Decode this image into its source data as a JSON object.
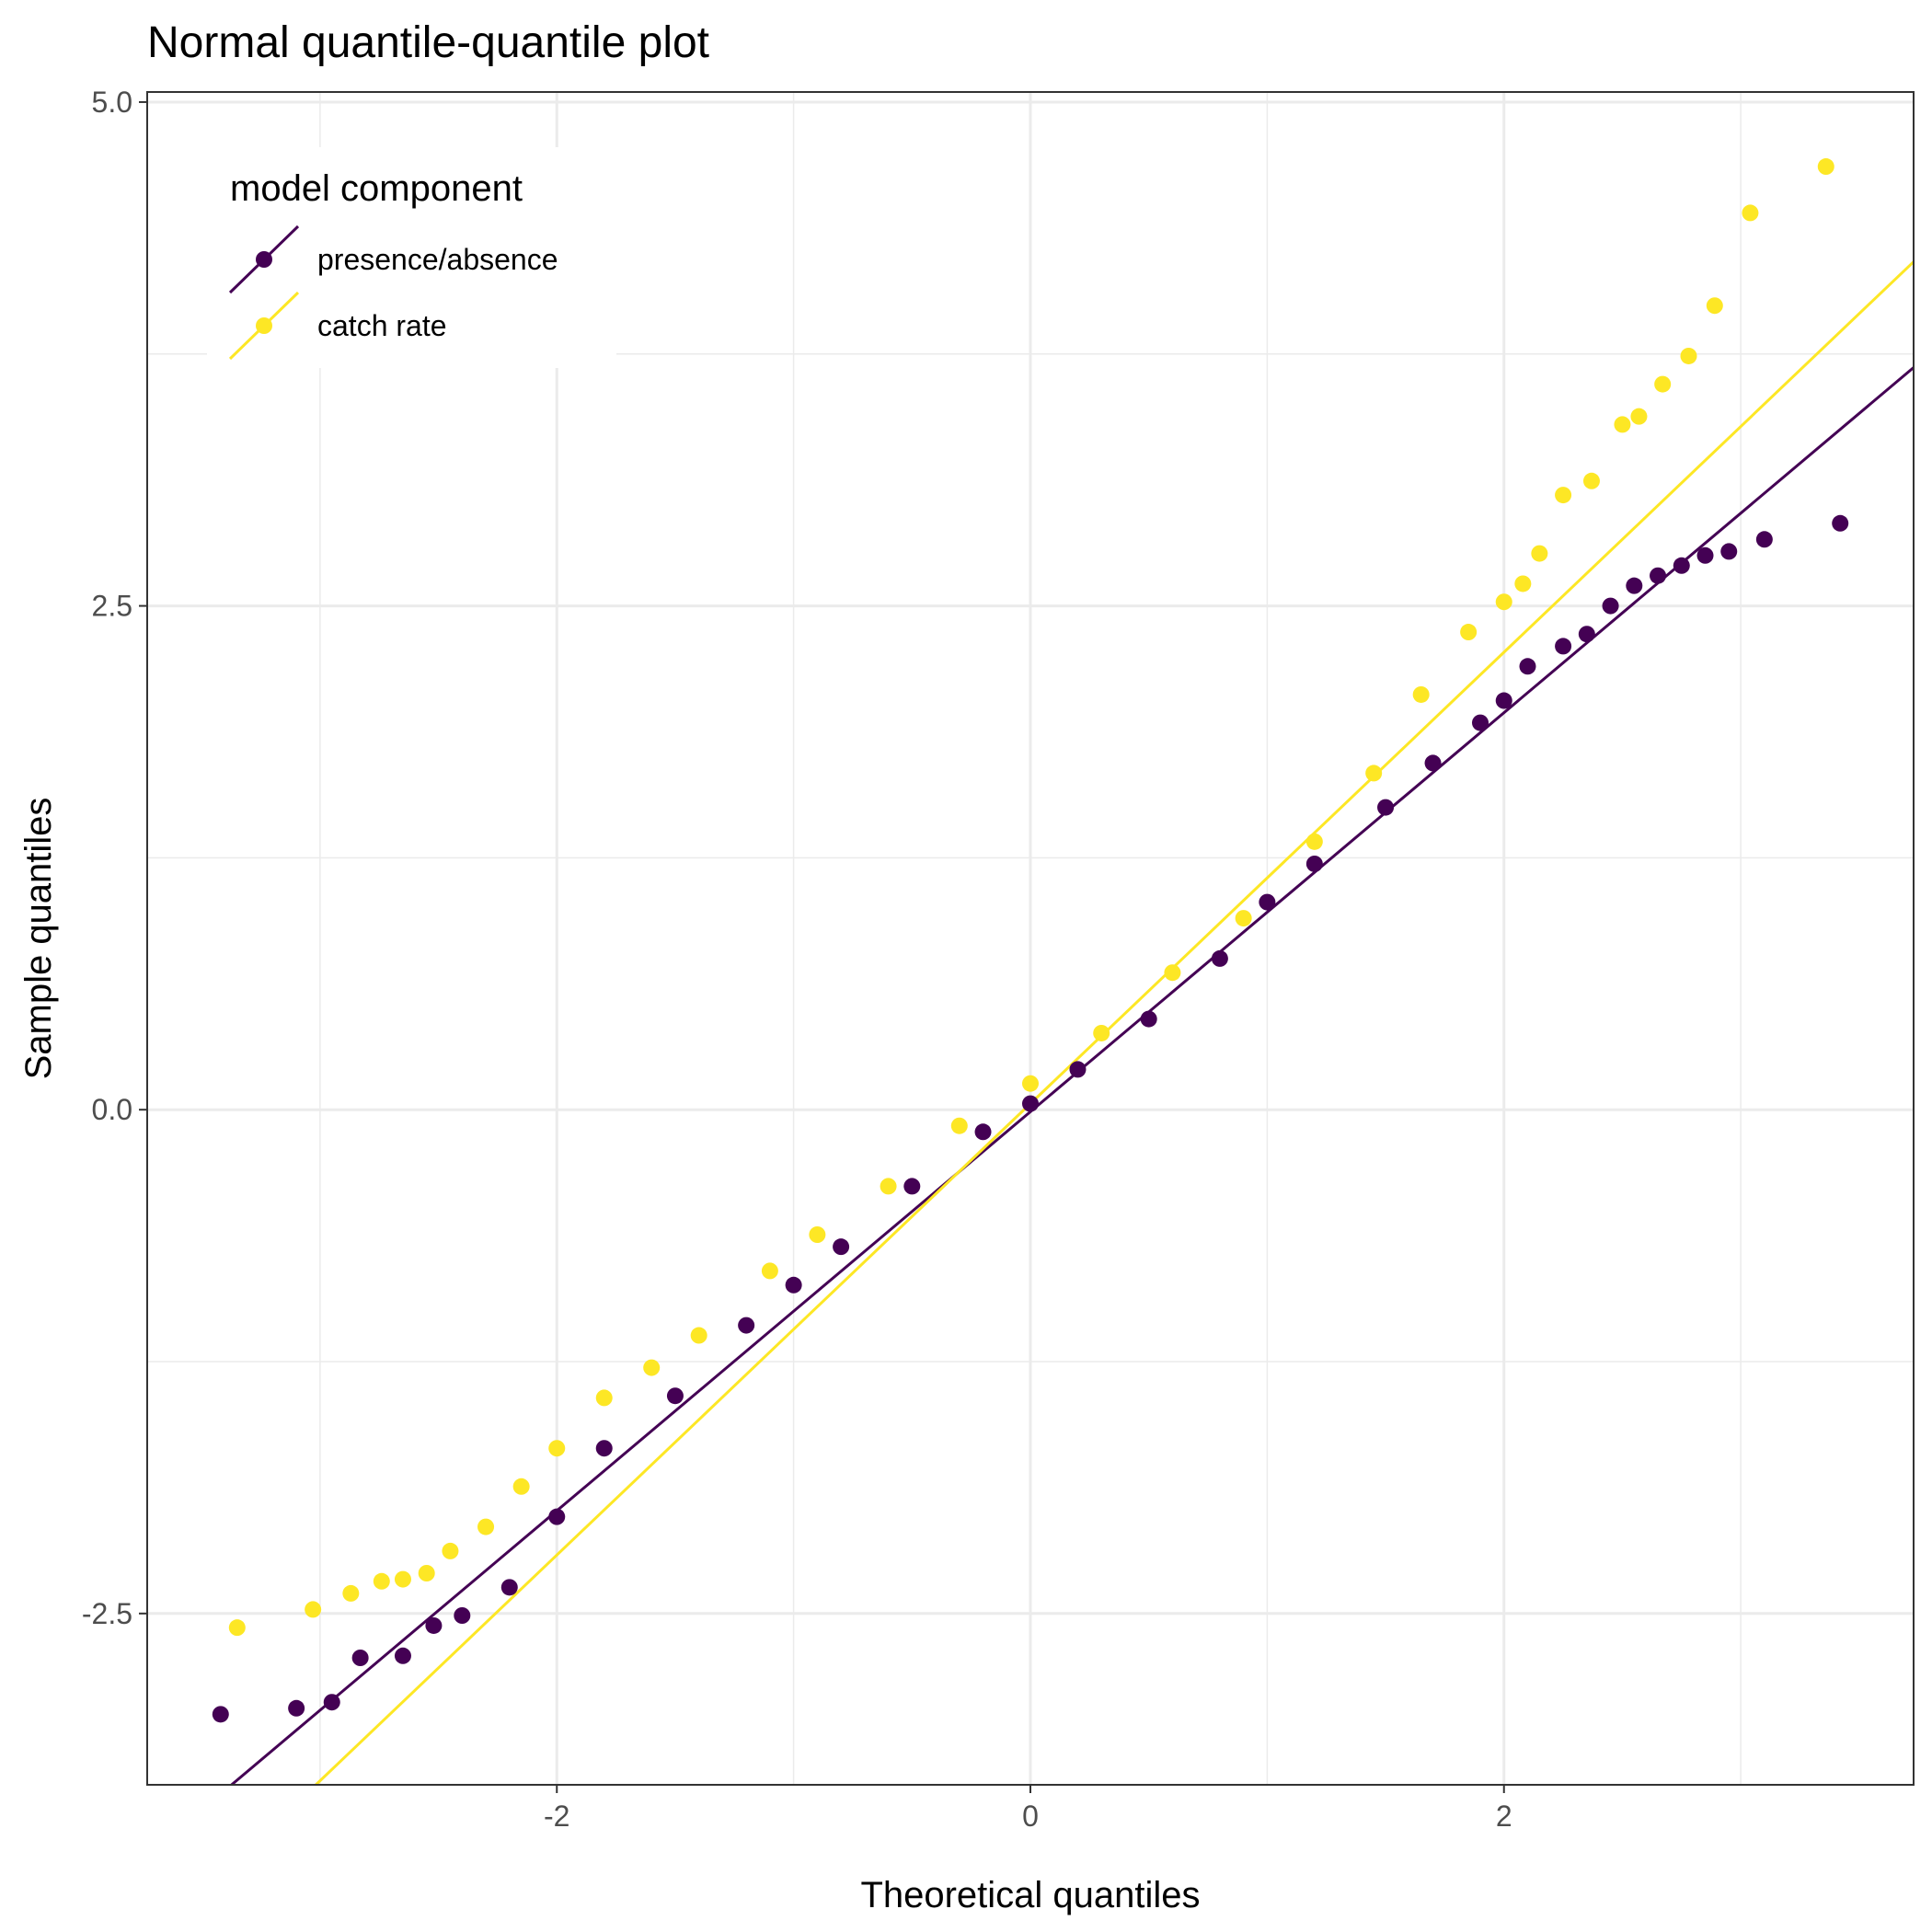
{
  "chart_data": {
    "type": "scatter",
    "title": "Normal quantile-quantile plot",
    "xlabel": "Theoretical quantiles",
    "ylabel": "Sample quantiles",
    "xlim": [
      -3.73,
      3.73
    ],
    "ylim": [
      -3.35,
      5.05
    ],
    "xticks": [
      -2,
      0,
      2
    ],
    "xtick_labels": [
      "-2",
      "0",
      "2"
    ],
    "yticks": [
      -2.5,
      0.0,
      2.5,
      5.0
    ],
    "ytick_labels": [
      "-2.5",
      "0.0",
      "2.5",
      "5.0"
    ],
    "grid": true,
    "legend": {
      "title": "model component",
      "position": "top-left inside"
    },
    "series": [
      {
        "name": "presence/absence",
        "color": "#440154",
        "reference_line": {
          "intercept": -0.01,
          "slope": 0.99
        },
        "points": [
          [
            -3.42,
            -3.0
          ],
          [
            -3.1,
            -2.97
          ],
          [
            -2.95,
            -2.94
          ],
          [
            -2.83,
            -2.72
          ],
          [
            -2.65,
            -2.71
          ],
          [
            -2.52,
            -2.56
          ],
          [
            -2.4,
            -2.51
          ],
          [
            -2.2,
            -2.37
          ],
          [
            -2.0,
            -2.02
          ],
          [
            -1.8,
            -1.68
          ],
          [
            -1.5,
            -1.42
          ],
          [
            -1.2,
            -1.07
          ],
          [
            -1.0,
            -0.87
          ],
          [
            -0.8,
            -0.68
          ],
          [
            -0.5,
            -0.38
          ],
          [
            -0.2,
            -0.11
          ],
          [
            0.0,
            0.03
          ],
          [
            0.2,
            0.2
          ],
          [
            0.5,
            0.45
          ],
          [
            0.8,
            0.75
          ],
          [
            1.0,
            1.03
          ],
          [
            1.2,
            1.22
          ],
          [
            1.5,
            1.5
          ],
          [
            1.7,
            1.72
          ],
          [
            1.9,
            1.92
          ],
          [
            2.0,
            2.03
          ],
          [
            2.1,
            2.2
          ],
          [
            2.25,
            2.3
          ],
          [
            2.35,
            2.36
          ],
          [
            2.45,
            2.5
          ],
          [
            2.55,
            2.6
          ],
          [
            2.65,
            2.65
          ],
          [
            2.75,
            2.7
          ],
          [
            2.85,
            2.75
          ],
          [
            2.95,
            2.77
          ],
          [
            3.1,
            2.83
          ],
          [
            3.42,
            2.91
          ]
        ]
      },
      {
        "name": "catch rate",
        "color": "#fde725",
        "reference_line": {
          "intercept": 0.03,
          "slope": 1.12
        },
        "points": [
          [
            -3.35,
            -2.57
          ],
          [
            -3.03,
            -2.48
          ],
          [
            -2.87,
            -2.4
          ],
          [
            -2.74,
            -2.34
          ],
          [
            -2.65,
            -2.33
          ],
          [
            -2.55,
            -2.3
          ],
          [
            -2.45,
            -2.19
          ],
          [
            -2.3,
            -2.07
          ],
          [
            -2.15,
            -1.87
          ],
          [
            -2.0,
            -1.68
          ],
          [
            -1.8,
            -1.43
          ],
          [
            -1.6,
            -1.28
          ],
          [
            -1.4,
            -1.12
          ],
          [
            -1.1,
            -0.8
          ],
          [
            -0.9,
            -0.62
          ],
          [
            -0.6,
            -0.38
          ],
          [
            -0.3,
            -0.08
          ],
          [
            0.0,
            0.13
          ],
          [
            0.3,
            0.38
          ],
          [
            0.6,
            0.68
          ],
          [
            0.9,
            0.95
          ],
          [
            1.2,
            1.33
          ],
          [
            1.45,
            1.67
          ],
          [
            1.65,
            2.06
          ],
          [
            1.85,
            2.37
          ],
          [
            2.0,
            2.52
          ],
          [
            2.08,
            2.61
          ],
          [
            2.15,
            2.76
          ],
          [
            2.25,
            3.05
          ],
          [
            2.37,
            3.12
          ],
          [
            2.5,
            3.4
          ],
          [
            2.57,
            3.44
          ],
          [
            2.67,
            3.6
          ],
          [
            2.78,
            3.74
          ],
          [
            2.89,
            3.99
          ],
          [
            3.04,
            4.45
          ],
          [
            3.36,
            4.68
          ]
        ]
      }
    ]
  }
}
